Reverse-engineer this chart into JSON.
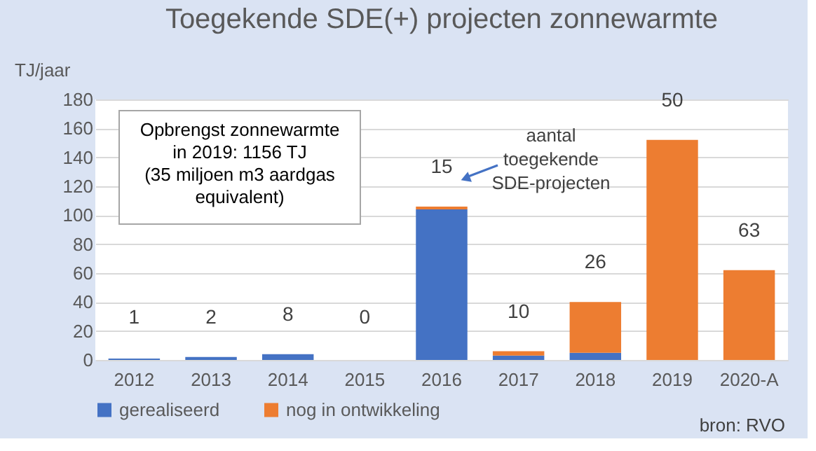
{
  "chart_data": {
    "type": "bar",
    "title": "Toegekende SDE(+) projecten zonnewarmte",
    "ylabel": "TJ/jaar",
    "categories": [
      "2012",
      "2013",
      "2014",
      "2015",
      "2016",
      "2017",
      "2018",
      "2019",
      "2020-A"
    ],
    "stacked": true,
    "series": [
      {
        "name": "gerealiseerd",
        "color": "#4472c4",
        "values": [
          1,
          2,
          4,
          0,
          104,
          3,
          5,
          0,
          0
        ]
      },
      {
        "name": "nog in ontwikkeling",
        "color": "#ed7d31",
        "values": [
          0,
          0,
          0,
          0,
          2,
          3,
          35,
          152,
          62
        ]
      }
    ],
    "ylim": [
      0,
      180
    ],
    "yticks": [
      0,
      20,
      40,
      60,
      80,
      100,
      120,
      140,
      160,
      180
    ],
    "grid": "y",
    "legend": "bottom",
    "annotations": [
      "1",
      "2",
      "8",
      "0",
      "15",
      "10",
      "26",
      "50",
      "63",
      "Opbrengst zonnewarmte\nin 2019: 1156 TJ\n(35 miljoen m3 aardgas\nequivalent)",
      "aantal\ntoegekende\nSDE-projecten",
      "bron: RVO"
    ]
  }
}
